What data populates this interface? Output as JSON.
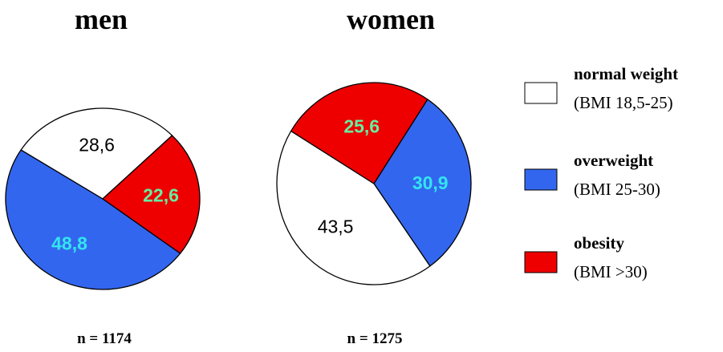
{
  "chart_data": [
    {
      "type": "pie",
      "title": "men",
      "note": "n = 1174",
      "slices": [
        {
          "name": "overweight",
          "value": 48.8,
          "label": "48,8",
          "color": "#3366ee",
          "label_color": "#33e5f0",
          "bold": true
        },
        {
          "name": "normal weight",
          "value": 28.6,
          "label": "28,6",
          "color": "#ffffff",
          "label_color": "#000000",
          "bold": false
        },
        {
          "name": "obesity",
          "value": 22.6,
          "label": "22,6",
          "color": "#ee0000",
          "label_color": "#66eea0",
          "bold": true
        }
      ]
    },
    {
      "type": "pie",
      "title": "women",
      "note": "n = 1275",
      "slices": [
        {
          "name": "overweight",
          "value": 30.9,
          "label": "30,9",
          "color": "#3366ee",
          "label_color": "#33e5f0",
          "bold": true
        },
        {
          "name": "normal weight",
          "value": 43.5,
          "label": "43,5",
          "color": "#ffffff",
          "label_color": "#000000",
          "bold": false
        },
        {
          "name": "obesity",
          "value": 25.6,
          "label": "25,6",
          "color": "#ee0000",
          "label_color": "#66eea0",
          "bold": true
        }
      ]
    }
  ],
  "legend": [
    {
      "title": "normal weight",
      "sub": "(BMI 18,5-25)",
      "color": "#ffffff"
    },
    {
      "title": "overweight",
      "sub": "(BMI 25-30)",
      "color": "#3366ee"
    },
    {
      "title": "obesity",
      "sub": "(BMI >30)",
      "color": "#ee0000"
    }
  ]
}
